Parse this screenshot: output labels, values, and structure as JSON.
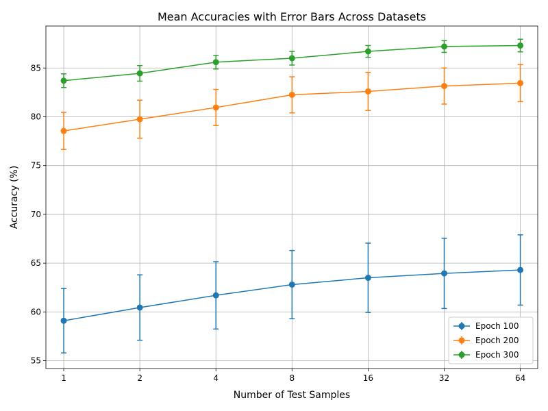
{
  "chart_data": {
    "type": "line",
    "title": "Mean Accuracies with Error Bars Across Datasets",
    "xlabel": "Number of Test Samples",
    "ylabel": "Accuracy (%)",
    "x_scale": "log2",
    "x": [
      1,
      2,
      4,
      8,
      16,
      32,
      64
    ],
    "x_tick_labels": [
      "1",
      "2",
      "4",
      "8",
      "16",
      "32",
      "64"
    ],
    "xlim": [
      0.85,
      75
    ],
    "ylim": [
      54.2,
      89.3
    ],
    "y_ticks": [
      55,
      60,
      65,
      70,
      75,
      80,
      85
    ],
    "grid": true,
    "legend_position": "lower-right",
    "series": [
      {
        "name": "Epoch 100",
        "color": "#1f77b4",
        "values": [
          59.1,
          60.45,
          61.7,
          62.8,
          63.5,
          63.95,
          64.3
        ],
        "errors": [
          3.3,
          3.35,
          3.45,
          3.5,
          3.55,
          3.6,
          3.6
        ]
      },
      {
        "name": "Epoch 200",
        "color": "#ff7f0e",
        "values": [
          78.55,
          79.75,
          80.95,
          82.25,
          82.6,
          83.15,
          83.45
        ],
        "errors": [
          1.9,
          1.95,
          1.85,
          1.85,
          1.95,
          1.85,
          1.9
        ]
      },
      {
        "name": "Epoch 300",
        "color": "#2ca02c",
        "values": [
          83.7,
          84.45,
          85.6,
          86.0,
          86.7,
          87.2,
          87.3
        ],
        "errors": [
          0.7,
          0.8,
          0.7,
          0.7,
          0.6,
          0.6,
          0.65
        ]
      }
    ]
  }
}
